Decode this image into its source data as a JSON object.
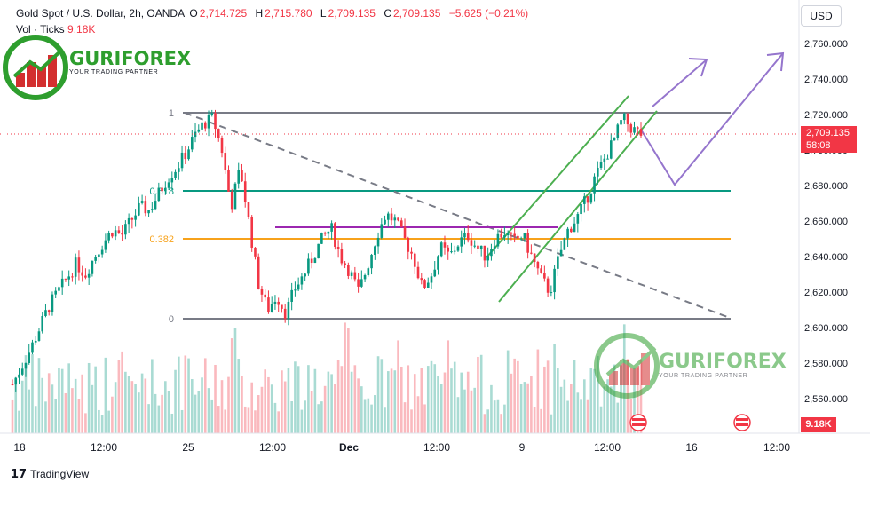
{
  "header": {
    "symbol": "Gold Spot / U.S. Dollar, 2h, OANDA",
    "open_label": "O",
    "open": "2,714.725",
    "high_label": "H",
    "high": "2,715.780",
    "low_label": "L",
    "low": "2,709.135",
    "close_label": "C",
    "close": "2,709.135",
    "change": "−5.625 (−0.21%)",
    "volume_label": "Vol · Ticks",
    "volume": "9.18K"
  },
  "currency": "USD",
  "last_price": {
    "price": "2,709.135",
    "countdown": "58:08"
  },
  "volume_badge": "9.18K",
  "branding": {
    "logo_name": "GURIFOREX",
    "logo_tagline": "YOUR TRADING PARTNER",
    "platform": "TradingView"
  },
  "colors": {
    "up": "#089981",
    "down": "#f23645",
    "fib": "#787b86",
    "fib618": "#089981",
    "fib382": "#f7a21b",
    "resistance": "#9c27b0",
    "channel": "#4caf50",
    "projection": "#9575cd"
  },
  "chart_data": {
    "type": "candlestick",
    "y_axis": {
      "ticks": [
        "2,560.000",
        "2,580.000",
        "2,600.000",
        "2,620.000",
        "2,640.000",
        "2,660.000",
        "2,680.000",
        "2,700.000",
        "2,720.000",
        "2,740.000",
        "2,760.000"
      ],
      "tick_values": [
        2560,
        2580,
        2600,
        2620,
        2640,
        2660,
        2680,
        2700,
        2720,
        2740,
        2760
      ],
      "range": [
        2546,
        2766
      ]
    },
    "x_axis": {
      "ticks": [
        "18",
        "12:00",
        "25",
        "12:00",
        "Dec",
        "12:00",
        "9",
        "12:00",
        "16",
        "12:00"
      ]
    },
    "fib_levels": [
      {
        "label": "1",
        "price": 2721
      },
      {
        "label": "0.618",
        "price": 2677
      },
      {
        "label": "0.382",
        "price": 2650
      },
      {
        "label": "0",
        "price": 2605
      }
    ],
    "ohlc_path": [
      2568,
      2578,
      2588,
      2600,
      2612,
      2620,
      2628,
      2636,
      2630,
      2640,
      2648,
      2655,
      2652,
      2660,
      2668,
      2666,
      2675,
      2684,
      2690,
      2698,
      2708,
      2715,
      2718,
      2700,
      2668,
      2690,
      2658,
      2625,
      2610,
      2618,
      2608,
      2622,
      2630,
      2640,
      2650,
      2656,
      2640,
      2632,
      2620,
      2635,
      2652,
      2664,
      2660,
      2650,
      2640,
      2622,
      2630,
      2645,
      2640,
      2648,
      2652,
      2645,
      2640,
      2650,
      2654,
      2648,
      2652,
      2640,
      2628,
      2620,
      2640,
      2655,
      2662,
      2672,
      2685,
      2695,
      2705,
      2718,
      2712,
      2709
    ],
    "volume_scale": "relative"
  }
}
